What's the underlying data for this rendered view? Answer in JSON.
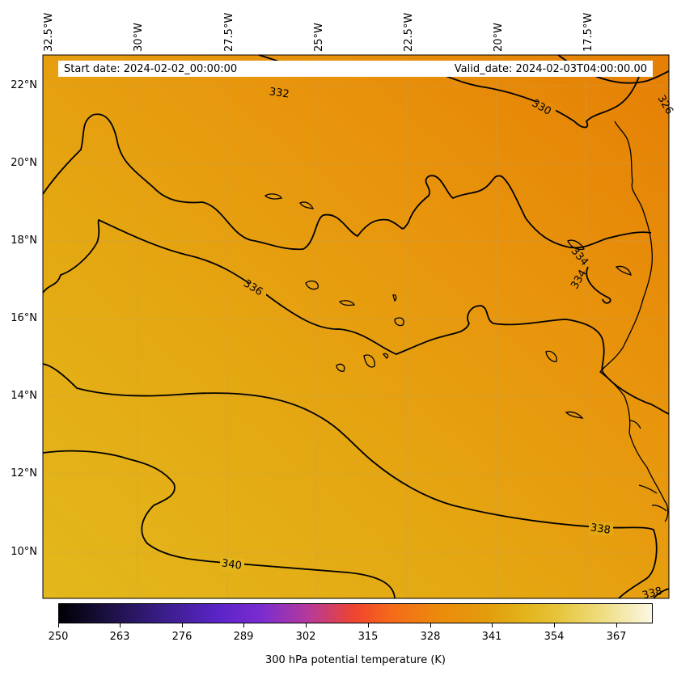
{
  "header": {
    "start_date": "Start date: 2024-02-02_00:00:00",
    "valid_date": "Valid_date: 2024-02-03T04:00:00.00"
  },
  "axes": {
    "lon_ticks": [
      "32.5°W",
      "30°W",
      "27.5°W",
      "25°W",
      "22.5°W",
      "20°W",
      "17.5°W"
    ],
    "lat_ticks": [
      "22°N",
      "20°N",
      "18°N",
      "16°N",
      "14°N",
      "12°N",
      "10°N"
    ]
  },
  "contour_labels": [
    "332",
    "330",
    "326",
    "334",
    "334",
    "336",
    "338",
    "340",
    "338"
  ],
  "colorbar": {
    "label": "300 hPa potential temperature (K)",
    "ticks": [
      "250",
      "263",
      "276",
      "289",
      "302",
      "315",
      "328",
      "341",
      "354",
      "367"
    ],
    "range": [
      250,
      373
    ]
  },
  "colors": {
    "field_north": "#e68a08",
    "field_south": "#e3b51a",
    "contour": "#000000",
    "grid": "#bdbdbd"
  }
}
